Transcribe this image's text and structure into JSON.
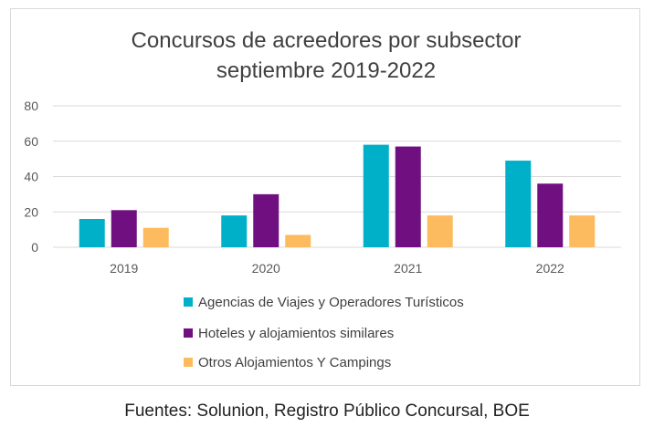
{
  "chart_data": {
    "type": "bar",
    "title": [
      "Concursos de acreedores por subsector",
      "septiembre 2019-2022"
    ],
    "categories": [
      "2019",
      "2020",
      "2021",
      "2022"
    ],
    "series": [
      {
        "name": "Agencias de Viajes y Operadores Turísticos",
        "color": "#00b0c8",
        "values": [
          16,
          18,
          58,
          49
        ]
      },
      {
        "name": "Hoteles y alojamientos similares",
        "color": "#701080",
        "values": [
          21,
          30,
          57,
          36
        ]
      },
      {
        "name": "Otros Alojamientos Y Campings",
        "color": "#fdbb5f",
        "values": [
          11,
          7,
          18,
          18
        ]
      }
    ],
    "ylim": [
      0,
      80
    ],
    "yticks": [
      0,
      20,
      40,
      60,
      80
    ],
    "grid": true,
    "legend_position": "bottom"
  },
  "source": "Fuentes: Solunion, Registro Público Concursal, BOE"
}
